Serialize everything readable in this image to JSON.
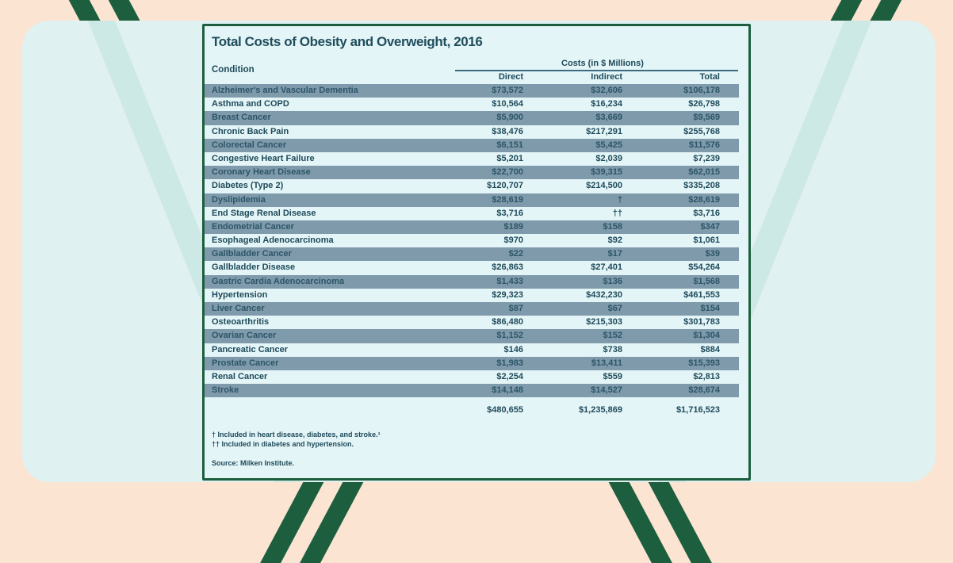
{
  "title": "Total Costs of Obesity and Overweight, 2016",
  "headers": {
    "condition": "Condition",
    "group": "Costs (in $ Millions)",
    "direct": "Direct",
    "indirect": "Indirect",
    "total": "Total"
  },
  "rows": [
    [
      "Alzheimer's and Vascular Dementia",
      "$73,572",
      "$32,606",
      "$106,178"
    ],
    [
      "Asthma and COPD",
      "$10,564",
      "$16,234",
      "$26,798"
    ],
    [
      "Breast Cancer",
      "$5,900",
      "$3,669",
      "$9,569"
    ],
    [
      "Chronic Back Pain",
      "$38,476",
      "$217,291",
      "$255,768"
    ],
    [
      "Colorectal Cancer",
      "$6,151",
      "$5,425",
      "$11,576"
    ],
    [
      "Congestive Heart Failure",
      "$5,201",
      "$2,039",
      "$7,239"
    ],
    [
      "Coronary Heart Disease",
      "$22,700",
      "$39,315",
      "$62,015"
    ],
    [
      "Diabetes (Type 2)",
      "$120,707",
      "$214,500",
      "$335,208"
    ],
    [
      "Dyslipidemia",
      "$28,619",
      "†",
      "$28,619"
    ],
    [
      "End Stage Renal Disease",
      "$3,716",
      "††",
      "$3,716"
    ],
    [
      "Endometrial Cancer",
      "$189",
      "$158",
      "$347"
    ],
    [
      "Esophageal Adenocarcinoma",
      "$970",
      "$92",
      "$1,061"
    ],
    [
      "Gallbladder Cancer",
      "$22",
      "$17",
      "$39"
    ],
    [
      "Gallbladder Disease",
      "$26,863",
      "$27,401",
      "$54,264"
    ],
    [
      "Gastric Cardia Adenocarcinoma",
      "$1,433",
      "$136",
      "$1,568"
    ],
    [
      "Hypertension",
      "$29,323",
      "$432,230",
      "$461,553"
    ],
    [
      "Liver Cancer",
      "$87",
      "$67",
      "$154"
    ],
    [
      "Osteoarthritis",
      "$86,480",
      "$215,303",
      "$301,783"
    ],
    [
      "Ovarian Cancer",
      "$1,152",
      "$152",
      "$1,304"
    ],
    [
      "Pancreatic Cancer",
      "$146",
      "$738",
      "$884"
    ],
    [
      "Prostate Cancer",
      "$1,983",
      "$13,411",
      "$15,393"
    ],
    [
      "Renal Cancer",
      "$2,254",
      "$559",
      "$2,813"
    ],
    [
      "Stroke",
      "$14,148",
      "$14,527",
      "$28,674"
    ]
  ],
  "totals": {
    "direct": "$480,655",
    "indirect": "$1,235,869",
    "total": "$1,716,523"
  },
  "notes": {
    "dagger": "† Included in heart disease, diabetes, and stroke.¹",
    "double_dagger": "†† Included in diabetes and hypertension.",
    "source": "Source: Milken Institute."
  },
  "colors": {
    "border": "#1d5e3e",
    "shade": "#7f9aab",
    "text": "#1e4a5a"
  }
}
